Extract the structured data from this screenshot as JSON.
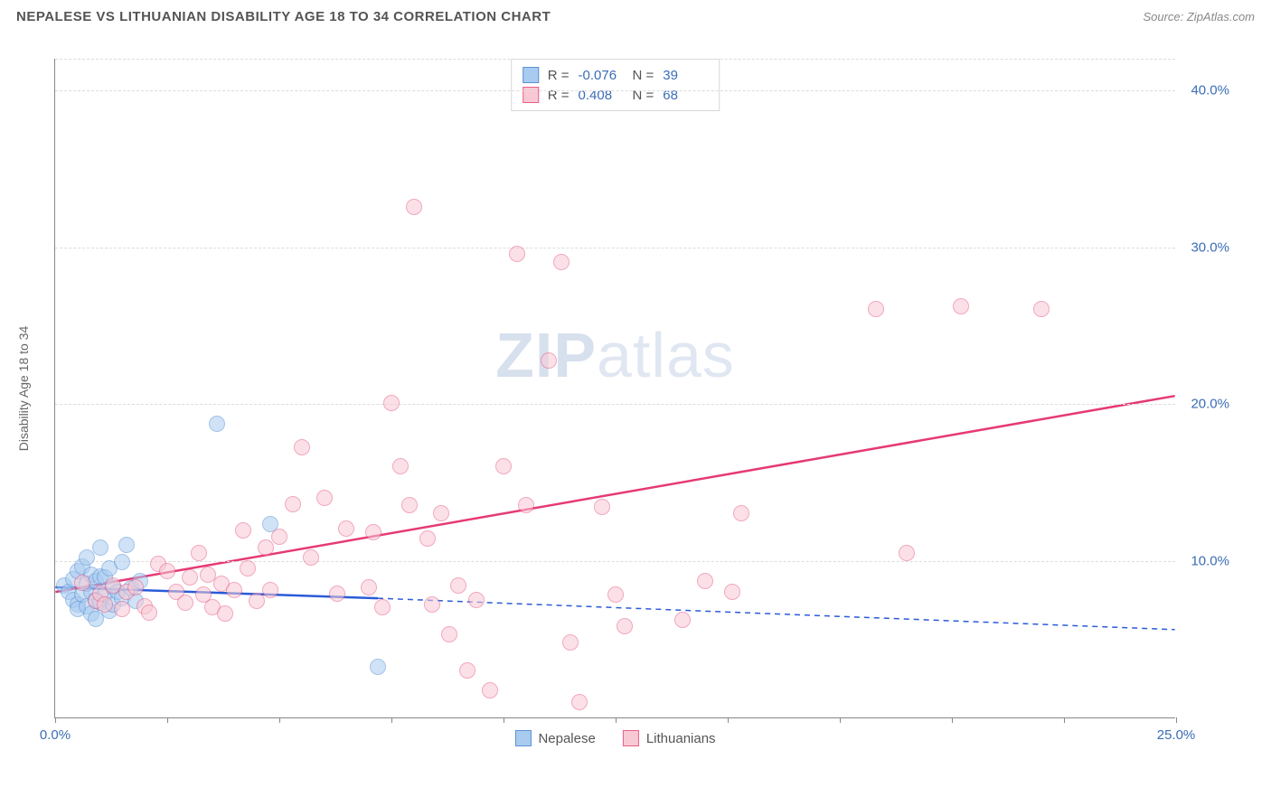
{
  "header": {
    "title": "NEPALESE VS LITHUANIAN DISABILITY AGE 18 TO 34 CORRELATION CHART",
    "source_label": "Source: ZipAtlas.com"
  },
  "watermark": {
    "part1": "ZIP",
    "part2": "atlas"
  },
  "chart": {
    "type": "scatter",
    "background_color": "#ffffff",
    "grid_color": "#dcdcdc",
    "axis_color": "#888888",
    "tick_label_color": "#3b6db5",
    "y_axis_label": "Disability Age 18 to 34",
    "xlim": [
      0,
      25
    ],
    "ylim": [
      0,
      42
    ],
    "x_ticks": [
      0,
      2.5,
      5,
      7.5,
      10,
      12.5,
      15,
      17.5,
      20,
      22.5,
      25
    ],
    "x_tick_labels": {
      "0": "0.0%",
      "25": "25.0%"
    },
    "y_ticks": [
      10,
      20,
      30,
      40
    ],
    "y_tick_labels": {
      "10": "10.0%",
      "20": "20.0%",
      "30": "30.0%",
      "40": "40.0%"
    },
    "marker_radius": 9,
    "marker_opacity": 0.55,
    "series": [
      {
        "name": "Nepalese",
        "color_fill": "#a9cbf0",
        "color_stroke": "#5b93d6",
        "r_value": "-0.076",
        "n_value": "39",
        "trend": {
          "x1": 0,
          "y1": 8.3,
          "x2": 7.2,
          "y2": 7.6,
          "dash_x2": 25,
          "dash_y2": 5.6,
          "color": "#2a5bd7",
          "width": 2.5
        },
        "points": [
          [
            0.2,
            8.4
          ],
          [
            0.3,
            8.0
          ],
          [
            0.4,
            7.5
          ],
          [
            0.4,
            8.8
          ],
          [
            0.5,
            9.3
          ],
          [
            0.5,
            7.2
          ],
          [
            0.5,
            6.9
          ],
          [
            0.6,
            9.6
          ],
          [
            0.6,
            7.8
          ],
          [
            0.7,
            7.1
          ],
          [
            0.7,
            8.5
          ],
          [
            0.7,
            10.2
          ],
          [
            0.8,
            8.0
          ],
          [
            0.8,
            6.6
          ],
          [
            0.8,
            9.1
          ],
          [
            0.9,
            7.5
          ],
          [
            0.9,
            8.7
          ],
          [
            0.9,
            6.3
          ],
          [
            1.0,
            9.0
          ],
          [
            1.0,
            7.3
          ],
          [
            1.0,
            10.8
          ],
          [
            1.1,
            7.8
          ],
          [
            1.1,
            8.9
          ],
          [
            1.2,
            6.8
          ],
          [
            1.2,
            9.5
          ],
          [
            1.3,
            7.2
          ],
          [
            1.3,
            8.3
          ],
          [
            1.4,
            8.0
          ],
          [
            1.5,
            7.6
          ],
          [
            1.5,
            9.9
          ],
          [
            1.6,
            11.0
          ],
          [
            1.7,
            8.2
          ],
          [
            1.8,
            7.4
          ],
          [
            1.9,
            8.7
          ],
          [
            3.6,
            18.7
          ],
          [
            4.8,
            12.3
          ],
          [
            7.2,
            3.2
          ]
        ]
      },
      {
        "name": "Lithuanians",
        "color_fill": "#f8c9d4",
        "color_stroke": "#e95f8b",
        "r_value": "0.408",
        "n_value": "68",
        "trend": {
          "x1": 0,
          "y1": 8.0,
          "x2": 25,
          "y2": 20.5,
          "color": "#e63975",
          "width": 2.5
        },
        "points": [
          [
            0.6,
            8.6
          ],
          [
            0.9,
            7.4
          ],
          [
            1.0,
            7.9
          ],
          [
            1.1,
            7.2
          ],
          [
            1.3,
            8.4
          ],
          [
            1.5,
            6.9
          ],
          [
            1.6,
            8.0
          ],
          [
            1.8,
            8.3
          ],
          [
            2.0,
            7.1
          ],
          [
            2.1,
            6.7
          ],
          [
            2.3,
            9.8
          ],
          [
            2.5,
            9.3
          ],
          [
            2.7,
            8.0
          ],
          [
            2.9,
            7.3
          ],
          [
            3.0,
            8.9
          ],
          [
            3.2,
            10.5
          ],
          [
            3.3,
            7.8
          ],
          [
            3.4,
            9.1
          ],
          [
            3.5,
            7.0
          ],
          [
            3.7,
            8.5
          ],
          [
            3.8,
            6.6
          ],
          [
            4.0,
            8.1
          ],
          [
            4.2,
            11.9
          ],
          [
            4.3,
            9.5
          ],
          [
            4.5,
            7.4
          ],
          [
            4.7,
            10.8
          ],
          [
            4.8,
            8.1
          ],
          [
            5.0,
            11.5
          ],
          [
            5.3,
            13.6
          ],
          [
            5.5,
            17.2
          ],
          [
            5.7,
            10.2
          ],
          [
            6.0,
            14.0
          ],
          [
            6.3,
            7.9
          ],
          [
            6.5,
            12.0
          ],
          [
            7.0,
            8.3
          ],
          [
            7.1,
            11.8
          ],
          [
            7.3,
            7.0
          ],
          [
            7.5,
            20.0
          ],
          [
            7.7,
            16.0
          ],
          [
            7.9,
            13.5
          ],
          [
            8.0,
            32.5
          ],
          [
            8.3,
            11.4
          ],
          [
            8.4,
            7.2
          ],
          [
            8.6,
            13.0
          ],
          [
            8.8,
            5.3
          ],
          [
            9.0,
            8.4
          ],
          [
            9.2,
            3.0
          ],
          [
            9.4,
            7.5
          ],
          [
            9.7,
            1.7
          ],
          [
            10.0,
            16.0
          ],
          [
            10.3,
            29.5
          ],
          [
            10.5,
            13.5
          ],
          [
            11.0,
            22.7
          ],
          [
            11.3,
            29.0
          ],
          [
            11.5,
            4.8
          ],
          [
            11.7,
            1.0
          ],
          [
            12.2,
            13.4
          ],
          [
            12.5,
            7.8
          ],
          [
            12.7,
            5.8
          ],
          [
            14.0,
            6.2
          ],
          [
            14.5,
            8.7
          ],
          [
            15.1,
            8.0
          ],
          [
            15.3,
            13.0
          ],
          [
            18.3,
            26.0
          ],
          [
            19.0,
            10.5
          ],
          [
            20.2,
            26.2
          ],
          [
            22.0,
            26.0
          ]
        ]
      }
    ],
    "bottom_legend": [
      {
        "label": "Nepalese",
        "fill": "#a9cbf0",
        "stroke": "#5b93d6"
      },
      {
        "label": "Lithuanians",
        "fill": "#f8c9d4",
        "stroke": "#e95f8b"
      }
    ]
  }
}
